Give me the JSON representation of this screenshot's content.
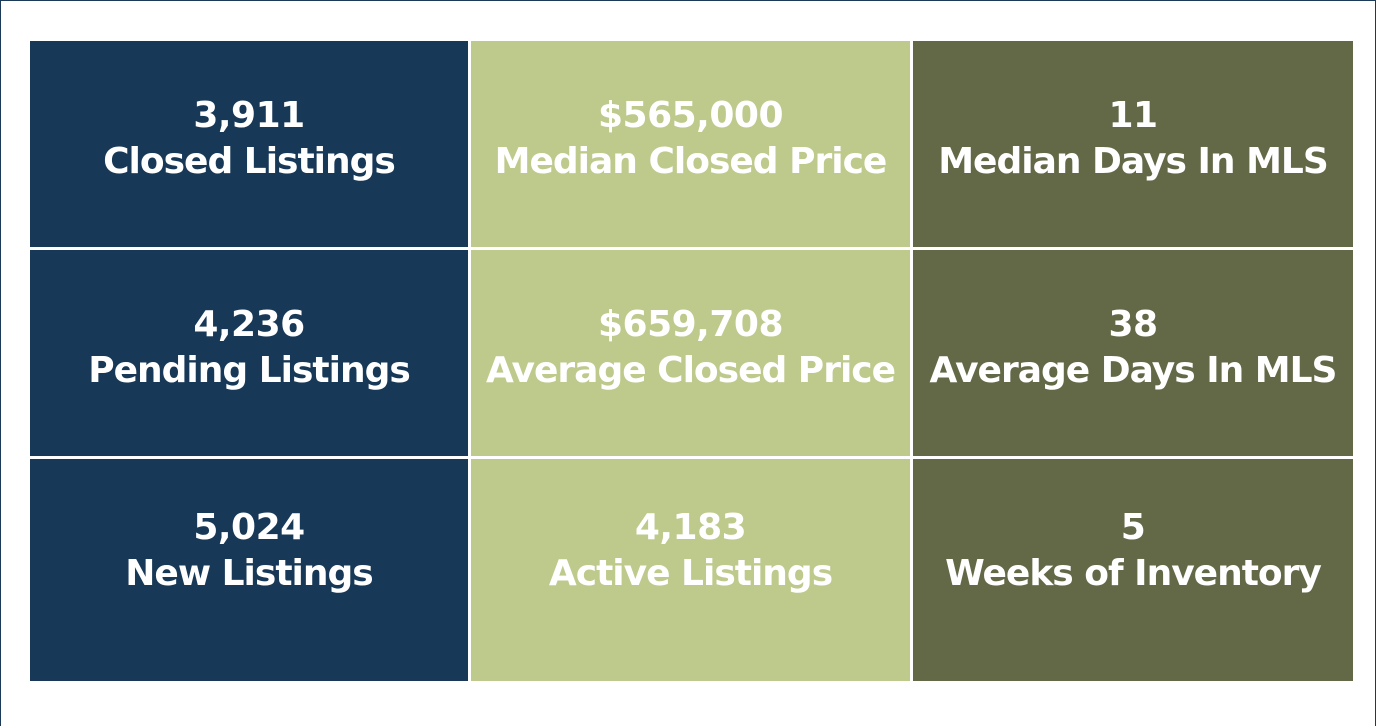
{
  "colors": {
    "navy": "#183857",
    "light_green": "#bec98c",
    "olive": "#636947",
    "text": "#ffffff"
  },
  "tiles": [
    {
      "value": "3,911",
      "label": "Closed Listings"
    },
    {
      "value": "$565,000",
      "label": "Median Closed Price"
    },
    {
      "value": "11",
      "label": "Median Days In MLS"
    },
    {
      "value": "4,236",
      "label": "Pending Listings"
    },
    {
      "value": "$659,708",
      "label": "Average Closed Price"
    },
    {
      "value": "38",
      "label": "Average Days In MLS"
    },
    {
      "value": "5,024",
      "label": "New Listings"
    },
    {
      "value": "4,183",
      "label": "Active Listings"
    },
    {
      "value": "5",
      "label": "Weeks of Inventory"
    }
  ]
}
